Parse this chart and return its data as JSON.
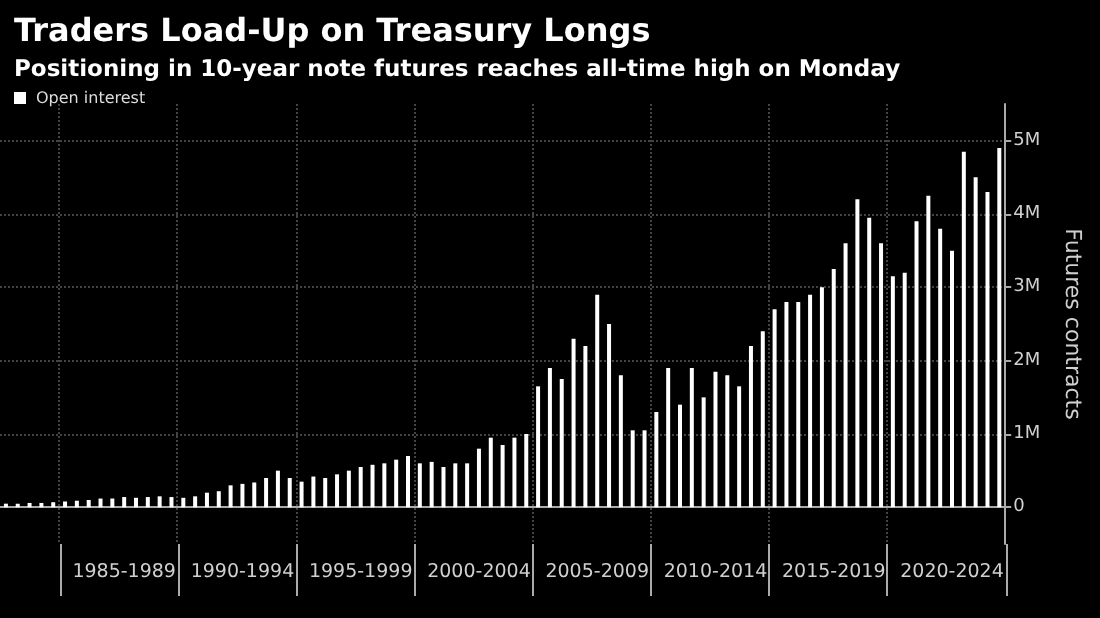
{
  "chart_data": {
    "type": "bar",
    "title": "Traders Load-Up on Treasury Longs",
    "subtitle": "Positioning in 10-year note futures reaches all-time high on Monday",
    "ylabel": "Futures contracts",
    "categories": [
      null,
      null,
      null,
      null,
      null,
      null,
      null,
      null,
      null,
      null,
      "1985-1989",
      null,
      null,
      null,
      null,
      null,
      null,
      null,
      null,
      null,
      "1990-1994",
      null,
      null,
      null,
      null,
      null,
      null,
      null,
      null,
      null,
      "1995-1999",
      null,
      null,
      null,
      null,
      null,
      null,
      null,
      null,
      null,
      "2000-2004",
      null,
      null,
      null,
      null,
      null,
      null,
      null,
      null,
      null,
      "2005-2009",
      null,
      null,
      null,
      null,
      null,
      null,
      null,
      null,
      null,
      "2010-2014",
      null,
      null,
      null,
      null,
      null,
      null,
      null,
      null,
      null,
      "2015-2019",
      null,
      null,
      null,
      null,
      null,
      null,
      null,
      null,
      null,
      "2020-2024",
      null,
      null,
      null,
      null
    ],
    "series": [
      {
        "name": "Open interest",
        "color": "#ffffff",
        "values": [
          0.05,
          0.05,
          0.06,
          0.06,
          0.07,
          0.08,
          0.09,
          0.1,
          0.12,
          0.12,
          0.14,
          0.13,
          0.14,
          0.15,
          0.14,
          0.13,
          0.15,
          0.2,
          0.22,
          0.3,
          0.32,
          0.34,
          0.4,
          0.5,
          0.4,
          0.35,
          0.42,
          0.4,
          0.45,
          0.5,
          0.55,
          0.58,
          0.6,
          0.65,
          0.7,
          0.6,
          0.62,
          0.55,
          0.6,
          0.6,
          0.8,
          0.95,
          0.85,
          0.95,
          1.0,
          1.65,
          1.9,
          1.75,
          2.3,
          2.2,
          2.9,
          2.5,
          1.8,
          1.05,
          1.05,
          1.3,
          1.9,
          1.4,
          1.9,
          1.5,
          1.85,
          1.8,
          1.65,
          2.2,
          2.4,
          2.7,
          2.8,
          2.8,
          2.9,
          3.0,
          3.25,
          3.6,
          4.2,
          3.95,
          3.6,
          3.15,
          3.2,
          3.9,
          4.25,
          3.8,
          3.5,
          4.85,
          4.5,
          4.3,
          4.9
        ]
      }
    ],
    "ylim": [
      -0.5,
      5.5
    ],
    "yticks": [
      0,
      {
        "value": 1,
        "label": "1M"
      },
      {
        "value": 2,
        "label": "2M"
      },
      {
        "value": 3,
        "label": "3M"
      },
      {
        "value": 4,
        "label": "4M"
      },
      {
        "value": 5,
        "label": "5M"
      }
    ],
    "grid": true,
    "legend": "top left"
  }
}
